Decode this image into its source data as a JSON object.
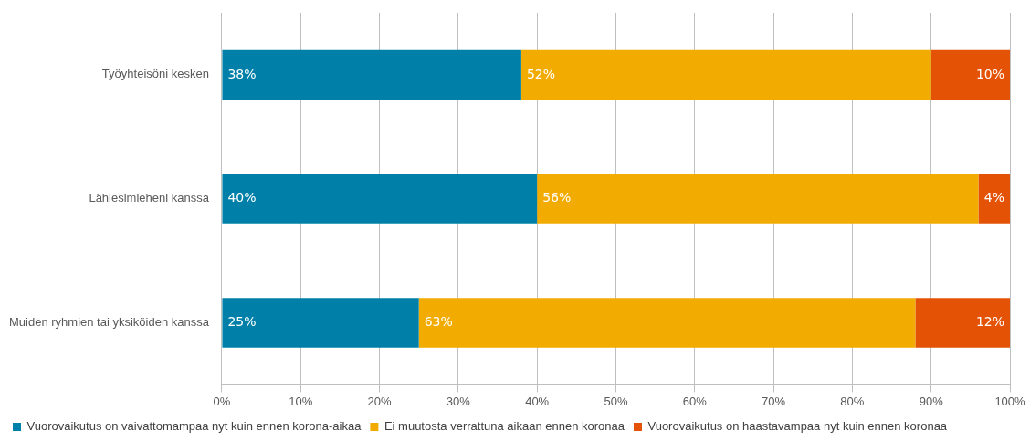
{
  "chart_data": {
    "type": "bar",
    "orientation": "horizontal",
    "stacked": true,
    "categories": [
      "Työyhteisöni kesken",
      "Lähiesimieheni kanssa",
      "Muiden ryhmien tai yksiköiden kanssa"
    ],
    "series": [
      {
        "name": "Vuorovaikutus on vaivattomampaa nyt kuin ennen korona-aikaa",
        "color": "#0080a8",
        "values": [
          38,
          40,
          25
        ],
        "value_labels": [
          "38%",
          "40%",
          "25%"
        ]
      },
      {
        "name": "Ei muutosta verrattuna aikaan ennen koronaa",
        "color": "#f2ab00",
        "values": [
          52,
          56,
          63
        ],
        "value_labels": [
          "52%",
          "56%",
          "63%"
        ]
      },
      {
        "name": "Vuorovaikutus on haastavampaa nyt kuin ennen koronaa",
        "color": "#e35205",
        "values": [
          10,
          4,
          12
        ],
        "value_labels": [
          "10%",
          "4%",
          "12%"
        ]
      }
    ],
    "xlim": [
      0,
      100
    ],
    "xticks": [
      {
        "value": 0,
        "label": "0%"
      },
      {
        "value": 10,
        "label": "10%"
      },
      {
        "value": 20,
        "label": "20%"
      },
      {
        "value": 30,
        "label": "30%"
      },
      {
        "value": 40,
        "label": "40%"
      },
      {
        "value": 50,
        "label": "50%"
      },
      {
        "value": 60,
        "label": "60%"
      },
      {
        "value": 70,
        "label": "70%"
      },
      {
        "value": 80,
        "label": "80%"
      },
      {
        "value": 90,
        "label": "90%"
      },
      {
        "value": 100,
        "label": "100%"
      }
    ],
    "grid": "x",
    "legend": "bottom"
  }
}
